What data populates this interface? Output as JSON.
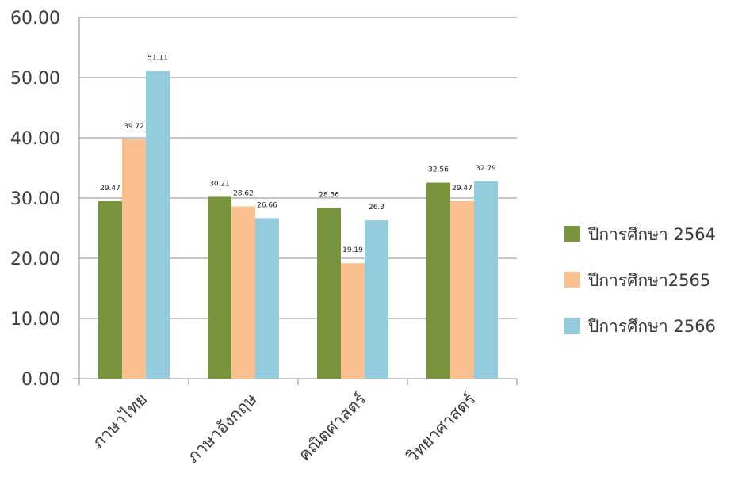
{
  "chart_data": {
    "type": "bar",
    "categories": [
      "ภาษาไทย",
      "ภาษาอังกฤษ",
      "คณิตศาสตร์",
      "วิทยาศาสตร์"
    ],
    "series": [
      {
        "name": "ปีการศึกษา 2564",
        "values": [
          29.47,
          30.21,
          28.36,
          32.56
        ],
        "labels": [
          "29.47",
          "30.21",
          "28.36",
          "32.56"
        ],
        "color": "#77933c"
      },
      {
        "name": "ปีการศึกษา2565",
        "values": [
          39.72,
          28.62,
          19.19,
          29.47
        ],
        "labels": [
          "39.72",
          "28.62",
          "19.19",
          "29.47"
        ],
        "color": "#fac090"
      },
      {
        "name": "ปีการศึกษา 2566",
        "values": [
          51.11,
          26.66,
          26.3,
          32.79
        ],
        "labels": [
          "51.11",
          "26.66",
          "26.3",
          "32.79"
        ],
        "color": "#93cddd"
      }
    ],
    "yticks": [
      "0.00",
      "10.00",
      "20.00",
      "30.00",
      "40.00",
      "50.00",
      "60.00"
    ],
    "ylim": [
      0,
      60
    ],
    "grid": true,
    "legend_position": "right",
    "title": "",
    "xlabel": "",
    "ylabel": ""
  }
}
